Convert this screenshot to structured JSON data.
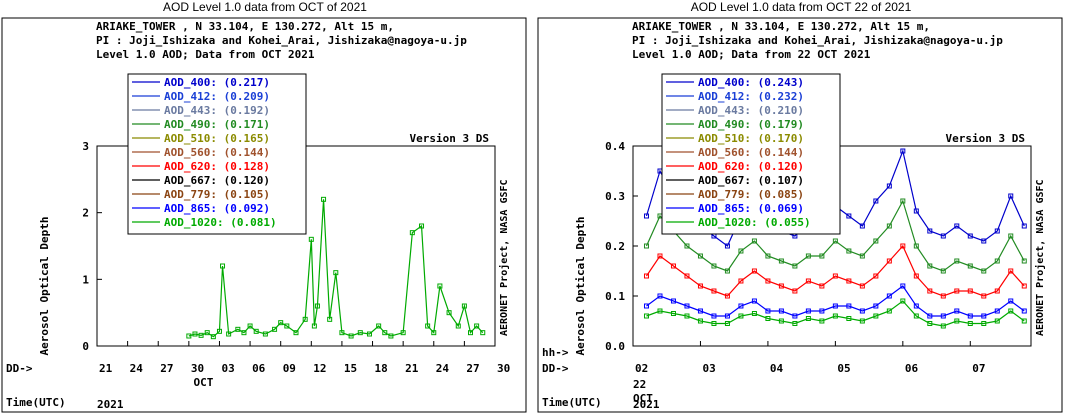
{
  "charts": [
    {
      "panel_title": "AOD Level 1.0 data from OCT of 2021",
      "header": [
        "ARIAKE_TOWER , N 33.104, E 130.272, Alt 15 m,",
        "PI : Joji_Ishizaka and Kohei_Arai, Jishizaka@nagoya-u.jp",
        "Level 1.0 AOD; Data from OCT 2021"
      ],
      "version": "Version 3 DS",
      "side_label": "AERONET Project, NASA GSFC",
      "ylabel": "Aerosol Optical Depth",
      "bottom_prefix": "DD->",
      "xlabel_time": "Time(UTC)",
      "year": "2021",
      "month_label": "OCT",
      "legend": [
        {
          "name": "AOD_400",
          "avg": "(0.217)",
          "color": "#0000cc"
        },
        {
          "name": "AOD_412",
          "avg": "(0.209)",
          "color": "#1a3fd6"
        },
        {
          "name": "AOD_443",
          "avg": "(0.192)",
          "color": "#6a7aa0"
        },
        {
          "name": "AOD_490",
          "avg": "(0.171)",
          "color": "#228b22"
        },
        {
          "name": "AOD_510",
          "avg": "(0.165)",
          "color": "#8b8b00"
        },
        {
          "name": "AOD_560",
          "avg": "(0.144)",
          "color": "#a0522d"
        },
        {
          "name": "AOD_620",
          "avg": "(0.128)",
          "color": "#ff0000"
        },
        {
          "name": "AOD_667",
          "avg": "(0.120)",
          "color": "#000000"
        },
        {
          "name": "AOD_779",
          "avg": "(0.105)",
          "color": "#8b4513"
        },
        {
          "name": "AOD_865",
          "avg": "(0.092)",
          "color": "#0000ff"
        },
        {
          "name": "AOD_1020",
          "avg": "(0.081)",
          "color": "#00aa00"
        }
      ],
      "chart_data": {
        "type": "line",
        "ylim": [
          0,
          3
        ],
        "yticks": [
          "0",
          "1",
          "2",
          "3"
        ],
        "x_tick_labels": [
          "21",
          "24",
          "27",
          "30",
          "03",
          "06",
          "09",
          "12",
          "15",
          "18",
          "21",
          "24",
          "27",
          "30"
        ],
        "xlim": [
          0,
          13
        ],
        "series": [
          {
            "name": "AOD_1020",
            "x": [
              3.0,
              3.2,
              3.4,
              3.6,
              3.8,
              4.0,
              4.1,
              4.3,
              4.6,
              4.8,
              5.0,
              5.2,
              5.5,
              5.8,
              6.0,
              6.2,
              6.5,
              6.8,
              7.0,
              7.1,
              7.2,
              7.4,
              7.6,
              7.8,
              8.0,
              8.3,
              8.6,
              8.9,
              9.2,
              9.4,
              9.6,
              10.0,
              10.3,
              10.6,
              10.8,
              11.0,
              11.2,
              11.5,
              11.8,
              12.0,
              12.2,
              12.4,
              12.6
            ],
            "y": [
              0.15,
              0.18,
              0.16,
              0.2,
              0.14,
              0.22,
              1.2,
              0.18,
              0.25,
              0.2,
              0.3,
              0.22,
              0.18,
              0.25,
              0.35,
              0.3,
              0.2,
              0.4,
              1.6,
              0.3,
              0.6,
              2.2,
              0.4,
              1.1,
              0.2,
              0.15,
              0.2,
              0.18,
              0.3,
              0.2,
              0.15,
              0.2,
              1.7,
              1.8,
              0.3,
              0.2,
              0.9,
              0.5,
              0.3,
              0.6,
              0.2,
              0.3,
              0.2
            ]
          }
        ]
      }
    },
    {
      "panel_title": "AOD Level 1.0 data from OCT 22 of 2021",
      "header": [
        "ARIAKE_TOWER , N 33.104, E 130.272, Alt 15 m,",
        "PI : Joji_Ishizaka and Kohei_Arai, Jishizaka@nagoya-u.jp",
        "Level 1.0 AOD; Data from 22 OCT 2021"
      ],
      "version": "Version 3 DS",
      "side_label": "AERONET Project, NASA GSFC",
      "ylabel": "Aerosol Optical Depth",
      "hh_prefix": "hh->",
      "bottom_prefix": "DD->",
      "xlabel_time": "Time(UTC)",
      "year": "2021",
      "day_label": "22",
      "month_label": "OCT",
      "legend": [
        {
          "name": "AOD_400",
          "avg": "(0.243)",
          "color": "#0000cc"
        },
        {
          "name": "AOD_412",
          "avg": "(0.232)",
          "color": "#1a3fd6"
        },
        {
          "name": "AOD_443",
          "avg": "(0.210)",
          "color": "#6a7aa0"
        },
        {
          "name": "AOD_490",
          "avg": "(0.179)",
          "color": "#228b22"
        },
        {
          "name": "AOD_510",
          "avg": "(0.170)",
          "color": "#8b8b00"
        },
        {
          "name": "AOD_560",
          "avg": "(0.144)",
          "color": "#a0522d"
        },
        {
          "name": "AOD_620",
          "avg": "(0.120)",
          "color": "#ff0000"
        },
        {
          "name": "AOD_667",
          "avg": "(0.107)",
          "color": "#000000"
        },
        {
          "name": "AOD_779",
          "avg": "(0.085)",
          "color": "#8b4513"
        },
        {
          "name": "AOD_865",
          "avg": "(0.069)",
          "color": "#0000ff"
        },
        {
          "name": "AOD_1020",
          "avg": "(0.055)",
          "color": "#00aa00"
        }
      ],
      "chart_data": {
        "type": "line",
        "ylim": [
          0.0,
          0.4
        ],
        "yticks": [
          "0.0",
          "0.1",
          "0.2",
          "0.3",
          "0.4"
        ],
        "x_tick_labels": [
          "02",
          "03",
          "04",
          "05",
          "06",
          "07"
        ],
        "xlim": [
          2,
          7.9
        ],
        "series": [
          {
            "name": "AOD_400",
            "x": [
              2.2,
              2.4,
              2.6,
              2.8,
              3.0,
              3.2,
              3.4,
              3.6,
              3.8,
              4.0,
              4.2,
              4.4,
              4.6,
              4.8,
              5.0,
              5.2,
              5.4,
              5.6,
              5.8,
              6.0,
              6.2,
              6.4,
              6.6,
              6.8,
              7.0,
              7.2,
              7.4,
              7.6,
              7.8
            ],
            "y": [
              0.26,
              0.35,
              0.3,
              0.27,
              0.24,
              0.22,
              0.2,
              0.26,
              0.28,
              0.25,
              0.23,
              0.22,
              0.25,
              0.24,
              0.28,
              0.26,
              0.24,
              0.29,
              0.32,
              0.39,
              0.27,
              0.23,
              0.22,
              0.24,
              0.22,
              0.21,
              0.23,
              0.3,
              0.24
            ]
          },
          {
            "name": "AOD_490",
            "x": [
              2.2,
              2.4,
              2.6,
              2.8,
              3.0,
              3.2,
              3.4,
              3.6,
              3.8,
              4.0,
              4.2,
              4.4,
              4.6,
              4.8,
              5.0,
              5.2,
              5.4,
              5.6,
              5.8,
              6.0,
              6.2,
              6.4,
              6.6,
              6.8,
              7.0,
              7.2,
              7.4,
              7.6,
              7.8
            ],
            "y": [
              0.2,
              0.26,
              0.23,
              0.2,
              0.18,
              0.16,
              0.15,
              0.19,
              0.21,
              0.18,
              0.17,
              0.16,
              0.18,
              0.18,
              0.21,
              0.19,
              0.18,
              0.21,
              0.24,
              0.29,
              0.2,
              0.16,
              0.15,
              0.17,
              0.16,
              0.15,
              0.17,
              0.22,
              0.17
            ]
          },
          {
            "name": "AOD_620",
            "x": [
              2.2,
              2.4,
              2.6,
              2.8,
              3.0,
              3.2,
              3.4,
              3.6,
              3.8,
              4.0,
              4.2,
              4.4,
              4.6,
              4.8,
              5.0,
              5.2,
              5.4,
              5.6,
              5.8,
              6.0,
              6.2,
              6.4,
              6.6,
              6.8,
              7.0,
              7.2,
              7.4,
              7.6,
              7.8
            ],
            "y": [
              0.14,
              0.18,
              0.16,
              0.14,
              0.12,
              0.11,
              0.1,
              0.13,
              0.15,
              0.13,
              0.12,
              0.11,
              0.13,
              0.12,
              0.14,
              0.13,
              0.12,
              0.14,
              0.17,
              0.2,
              0.14,
              0.11,
              0.1,
              0.11,
              0.11,
              0.1,
              0.11,
              0.15,
              0.12
            ]
          },
          {
            "name": "AOD_865",
            "x": [
              2.2,
              2.4,
              2.6,
              2.8,
              3.0,
              3.2,
              3.4,
              3.6,
              3.8,
              4.0,
              4.2,
              4.4,
              4.6,
              4.8,
              5.0,
              5.2,
              5.4,
              5.6,
              5.8,
              6.0,
              6.2,
              6.4,
              6.6,
              6.8,
              7.0,
              7.2,
              7.4,
              7.6,
              7.8
            ],
            "y": [
              0.08,
              0.1,
              0.09,
              0.08,
              0.07,
              0.06,
              0.06,
              0.08,
              0.09,
              0.07,
              0.07,
              0.06,
              0.07,
              0.07,
              0.08,
              0.08,
              0.07,
              0.08,
              0.1,
              0.12,
              0.08,
              0.06,
              0.06,
              0.07,
              0.06,
              0.06,
              0.07,
              0.09,
              0.07
            ]
          },
          {
            "name": "AOD_1020",
            "x": [
              2.2,
              2.4,
              2.6,
              2.8,
              3.0,
              3.2,
              3.4,
              3.6,
              3.8,
              4.0,
              4.2,
              4.4,
              4.6,
              4.8,
              5.0,
              5.2,
              5.4,
              5.6,
              5.8,
              6.0,
              6.2,
              6.4,
              6.6,
              6.8,
              7.0,
              7.2,
              7.4,
              7.6,
              7.8
            ],
            "y": [
              0.06,
              0.07,
              0.065,
              0.06,
              0.05,
              0.045,
              0.045,
              0.06,
              0.065,
              0.055,
              0.05,
              0.045,
              0.055,
              0.05,
              0.06,
              0.055,
              0.05,
              0.06,
              0.07,
              0.09,
              0.06,
              0.045,
              0.04,
              0.05,
              0.045,
              0.045,
              0.05,
              0.07,
              0.05
            ]
          }
        ]
      }
    }
  ]
}
